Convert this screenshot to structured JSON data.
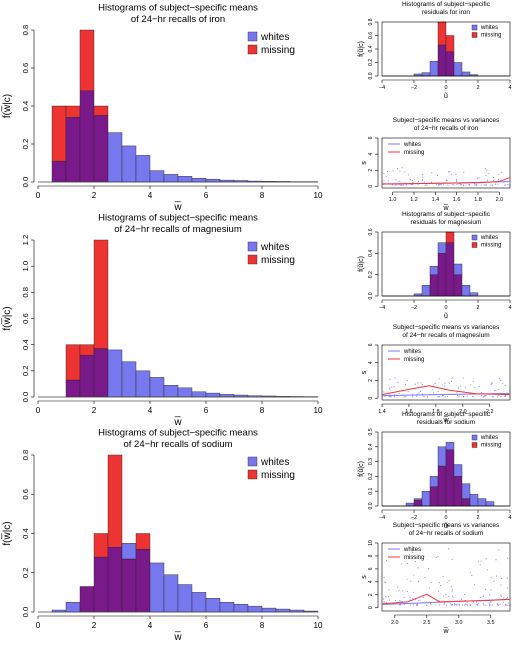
{
  "colors": {
    "whites": "#7777ee",
    "missing": "#ee3333",
    "overlap": "#7a1a8a",
    "line_whites": "#7777ff",
    "line_missing": "#ff3333"
  },
  "chart_data": [
    {
      "id": "hist-iron",
      "type": "bar",
      "title": [
        "Histograms of subject−specific means",
        "of 24−hr recalls of iron"
      ],
      "xlabel": "w̅",
      "ylabel": "f(w̅|c)",
      "xlim": [
        0,
        10
      ],
      "ylim": [
        0,
        0.8
      ],
      "bin_width": 0.5,
      "xticks": [
        "0",
        "2",
        "4",
        "6",
        "8",
        "10"
      ],
      "yticks": [
        "0.0",
        "0.2",
        "0.4",
        "0.6",
        "0.8"
      ],
      "legend": [
        "whites",
        "missing"
      ],
      "legend_position": "top-right",
      "series": [
        {
          "name": "whites",
          "x_start": [
            0.5,
            1.0,
            1.5,
            2.0,
            2.5,
            3.0,
            3.5,
            4.0,
            4.5,
            5.0,
            5.5,
            6.0,
            6.5,
            7.0,
            7.5,
            8.0,
            8.5,
            9.0,
            9.5
          ],
          "values": [
            0.11,
            0.34,
            0.48,
            0.35,
            0.26,
            0.19,
            0.14,
            0.06,
            0.04,
            0.03,
            0.02,
            0.015,
            0.01,
            0.008,
            0.005,
            0.004,
            0.003,
            0.002,
            0.002
          ]
        },
        {
          "name": "missing",
          "x_start": [
            0.5,
            1.0,
            1.5,
            2.0
          ],
          "values": [
            0.4,
            0.4,
            0.8,
            0.4
          ]
        }
      ]
    },
    {
      "id": "hist-magnesium",
      "type": "bar",
      "title": [
        "Histograms of subject−specific means",
        "of 24−hr recalls of magnesium"
      ],
      "xlabel": "w̅",
      "ylabel": "f(w̅|c)",
      "xlim": [
        0,
        10
      ],
      "ylim": [
        0,
        1.2
      ],
      "bin_width": 0.5,
      "xticks": [
        "0",
        "2",
        "4",
        "6",
        "8",
        "10"
      ],
      "yticks": [
        "0.0",
        "0.2",
        "0.4",
        "0.6",
        "0.8",
        "1.0",
        "1.2"
      ],
      "legend": [
        "whites",
        "missing"
      ],
      "legend_position": "top-right",
      "series": [
        {
          "name": "whites",
          "x_start": [
            1.0,
            1.5,
            2.0,
            2.5,
            3.0,
            3.5,
            4.0,
            4.5,
            5.0,
            5.5,
            6.0,
            6.5,
            7.0,
            7.5,
            8.0,
            8.5,
            9.0,
            9.5
          ],
          "values": [
            0.13,
            0.32,
            0.37,
            0.36,
            0.27,
            0.2,
            0.15,
            0.09,
            0.07,
            0.04,
            0.03,
            0.02,
            0.015,
            0.01,
            0.008,
            0.005,
            0.004,
            0.003
          ]
        },
        {
          "name": "missing",
          "x_start": [
            1.0,
            1.5,
            2.0
          ],
          "values": [
            0.4,
            0.4,
            1.2
          ]
        }
      ]
    },
    {
      "id": "hist-sodium",
      "type": "bar",
      "title": [
        "Histograms of subject−specific means",
        "of 24−hr recalls of sodium"
      ],
      "xlabel": "w̅",
      "ylabel": "f(w̅|c)",
      "xlim": [
        0,
        10
      ],
      "ylim": [
        0,
        0.8
      ],
      "bin_width": 0.5,
      "xticks": [
        "0",
        "2",
        "4",
        "6",
        "8",
        "10"
      ],
      "yticks": [
        "0.0",
        "0.2",
        "0.4",
        "0.6",
        "0.8"
      ],
      "legend": [
        "whites",
        "missing"
      ],
      "legend_position": "top-right",
      "series": [
        {
          "name": "whites",
          "x_start": [
            0.5,
            1.0,
            1.5,
            2.0,
            2.5,
            3.0,
            3.5,
            4.0,
            4.5,
            5.0,
            5.5,
            6.0,
            6.5,
            7.0,
            7.5,
            8.0,
            8.5,
            9.0,
            9.5
          ],
          "values": [
            0.01,
            0.05,
            0.13,
            0.28,
            0.33,
            0.35,
            0.32,
            0.25,
            0.19,
            0.14,
            0.1,
            0.07,
            0.05,
            0.04,
            0.03,
            0.02,
            0.015,
            0.01,
            0.005
          ]
        },
        {
          "name": "missing",
          "x_start": [
            1.5,
            2.0,
            2.5,
            3.0,
            3.5
          ],
          "values": [
            0.13,
            0.4,
            0.8,
            0.27,
            0.4
          ]
        }
      ]
    },
    {
      "id": "resid-iron",
      "type": "bar",
      "title": [
        "Histograms of subject−specific",
        "residuals for iron"
      ],
      "xlabel": "ũ",
      "ylabel": "f(ũ|c)",
      "xlim": [
        -4,
        4
      ],
      "ylim": [
        0,
        0.8
      ],
      "bin_width": 0.5,
      "xticks": [
        "−4",
        "−2",
        "0",
        "2",
        "4"
      ],
      "yticks": [
        "0.0",
        "0.2",
        "0.4",
        "0.6",
        "0.8"
      ],
      "legend": [
        "whites",
        "missing"
      ],
      "legend_position": "top-right",
      "series": [
        {
          "name": "whites",
          "x_start": [
            -2.0,
            -1.5,
            -1.0,
            -0.5,
            0.0,
            0.5,
            1.0,
            1.5
          ],
          "values": [
            0.03,
            0.05,
            0.22,
            0.46,
            0.36,
            0.2,
            0.06,
            0.02
          ]
        },
        {
          "name": "missing",
          "x_start": [
            -0.5,
            0.0
          ],
          "values": [
            0.8,
            0.6
          ]
        }
      ]
    },
    {
      "id": "resid-magnesium",
      "type": "bar",
      "title": [
        "Histograms of subject−specific",
        "residuals for magnesium"
      ],
      "xlabel": "ũ",
      "ylabel": "f(ũ|c)",
      "xlim": [
        -4,
        4
      ],
      "ylim": [
        0,
        0.6
      ],
      "bin_width": 0.5,
      "xticks": [
        "−4",
        "−2",
        "0",
        "2",
        "4"
      ],
      "yticks": [
        "0.0",
        "0.2",
        "0.4",
        "0.6"
      ],
      "legend": [
        "whites",
        "missing"
      ],
      "legend_position": "top-right",
      "series": [
        {
          "name": "whites",
          "x_start": [
            -2.0,
            -1.5,
            -1.0,
            -0.5,
            0.0,
            0.5,
            1.0,
            1.5
          ],
          "values": [
            0.02,
            0.1,
            0.28,
            0.5,
            0.5,
            0.3,
            0.1,
            0.03
          ]
        },
        {
          "name": "missing",
          "x_start": [
            -1.0,
            -0.5,
            0.0,
            0.5
          ],
          "values": [
            0.2,
            0.4,
            0.6,
            0.2
          ]
        }
      ]
    },
    {
      "id": "resid-sodium",
      "type": "bar",
      "title": [
        "Histograms of subject−specific",
        "residuals for sodium"
      ],
      "xlabel": "ũ",
      "ylabel": "f(ũ|c)",
      "xlim": [
        -4,
        4
      ],
      "ylim": [
        0,
        0.5
      ],
      "bin_width": 0.5,
      "xticks": [
        "−4",
        "−2",
        "0",
        "2",
        "4"
      ],
      "yticks": [
        "0.0",
        "0.1",
        "0.2",
        "0.3",
        "0.4",
        "0.5"
      ],
      "legend": [
        "whites",
        "missing"
      ],
      "legend_position": "top-right",
      "series": [
        {
          "name": "whites",
          "x_start": [
            -2.5,
            -2.0,
            -1.5,
            -1.0,
            -0.5,
            0.0,
            0.5,
            1.0,
            1.5,
            2.0,
            2.5
          ],
          "values": [
            0.02,
            0.05,
            0.1,
            0.2,
            0.4,
            0.43,
            0.28,
            0.15,
            0.08,
            0.05,
            0.03
          ]
        },
        {
          "name": "missing",
          "x_start": [
            -2.0,
            -1.0,
            -0.5,
            0.0,
            0.5,
            1.0
          ],
          "values": [
            0.04,
            0.13,
            0.27,
            0.38,
            0.2,
            0.05
          ]
        }
      ]
    },
    {
      "id": "mv-iron",
      "type": "scatter",
      "title": [
        "Subject−specific means vs variances",
        "of 24−hr recalls of iron"
      ],
      "xlabel": "w̅",
      "ylabel": "s²w",
      "xlim": [
        0.9,
        2.1
      ],
      "ylim": [
        -0.2,
        6
      ],
      "xticks": [
        "1.0",
        "1.2",
        "1.4",
        "1.6",
        "1.8",
        "2.0"
      ],
      "yticks": [
        "0",
        "2",
        "4",
        "6"
      ],
      "legend": [
        "whites",
        "missing"
      ],
      "legend_position": "top-left",
      "series": [
        {
          "name": "whites",
          "x": [
            0.9,
            1.2,
            1.5,
            1.8,
            2.1
          ],
          "y": [
            0.3,
            0.35,
            0.4,
            0.5,
            0.6
          ]
        },
        {
          "name": "missing",
          "x": [
            0.9,
            1.2,
            1.5,
            1.8,
            2.0,
            2.1
          ],
          "y": [
            0.3,
            0.35,
            0.4,
            0.45,
            0.6,
            1.1
          ]
        }
      ]
    },
    {
      "id": "mv-magnesium",
      "type": "scatter",
      "title": [
        "Subject−specific means vs variances",
        "of 24−hr recalls of magnesium"
      ],
      "xlabel": "w̅",
      "ylabel": "s²w",
      "xlim": [
        1.4,
        2.35
      ],
      "ylim": [
        -0.2,
        6
      ],
      "xticks": [
        "1.4",
        "1.6",
        "1.8",
        "2.0",
        "2.2"
      ],
      "yticks": [
        "0",
        "2",
        "4",
        "6"
      ],
      "legend": [
        "whites",
        "missing"
      ],
      "legend_position": "top-left",
      "series": [
        {
          "name": "whites",
          "x": [
            1.4,
            1.6,
            1.8,
            2.0,
            2.2,
            2.35
          ],
          "y": [
            0.3,
            0.35,
            0.4,
            0.45,
            0.5,
            0.55
          ]
        },
        {
          "name": "missing",
          "x": [
            1.4,
            1.6,
            1.75,
            1.9,
            2.1,
            2.35
          ],
          "y": [
            0.4,
            1.0,
            1.4,
            0.9,
            0.5,
            0.4
          ]
        }
      ]
    },
    {
      "id": "mv-sodium",
      "type": "scatter",
      "title": [
        "Subject−specific means vs variances",
        "of 24−hr recalls of sodium"
      ],
      "xlabel": "w̅",
      "ylabel": "s²w",
      "xlim": [
        1.8,
        3.8
      ],
      "ylim": [
        -0.5,
        10
      ],
      "xticks": [
        "2.0",
        "2.5",
        "3.0",
        "3.5"
      ],
      "yticks": [
        "0",
        "2",
        "4",
        "6",
        "8",
        "10"
      ],
      "legend": [
        "whites",
        "missing"
      ],
      "legend_position": "top-left",
      "series": [
        {
          "name": "whites",
          "x": [
            1.8,
            2.3,
            2.8,
            3.3,
            3.8
          ],
          "y": [
            0.5,
            0.7,
            0.9,
            1.1,
            1.3
          ]
        },
        {
          "name": "missing",
          "x": [
            1.8,
            2.2,
            2.5,
            2.7,
            3.0,
            3.4,
            3.8
          ],
          "y": [
            0.6,
            0.9,
            2.1,
            0.9,
            1.0,
            1.1,
            1.3
          ]
        }
      ]
    }
  ]
}
